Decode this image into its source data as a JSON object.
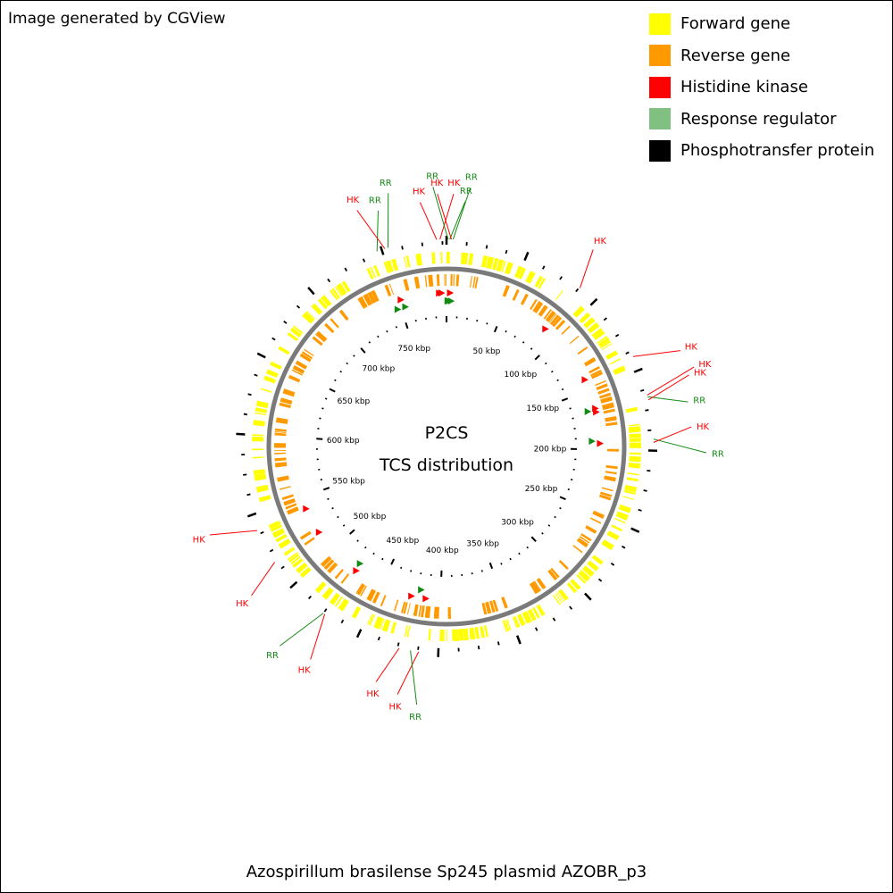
{
  "credit": "Image generated by CGView",
  "title": "Azospirillum brasilense Sp245 plasmid AZOBR_p3",
  "center_text": {
    "line1": "P2CS",
    "line2": "TCS distribution"
  },
  "legend": [
    {
      "label": "Forward gene",
      "color": "#ffff00"
    },
    {
      "label": "Reverse gene",
      "color": "#ff9900"
    },
    {
      "label": "Histidine kinase",
      "color": "#ff0000"
    },
    {
      "label": "Response regulator",
      "color": "#80c080"
    },
    {
      "label": "Phosphotransfer protein",
      "color": "#000000"
    }
  ],
  "colors": {
    "forward": "#ffff00",
    "reverse": "#ff9900",
    "hk": "#ff0000",
    "rr_marker": "#138a13",
    "backbone": "#7a7a7a",
    "ticks": "#000000"
  },
  "genome": {
    "length_kbp": 790,
    "tick_labels": [
      "50 kbp",
      "100 kbp",
      "150 kbp",
      "200 kbp",
      "250 kbp",
      "300 kbp",
      "350 kbp",
      "400 kbp",
      "450 kbp",
      "500 kbp",
      "550 kbp",
      "600 kbp",
      "650 kbp",
      "700 kbp",
      "750 kbp"
    ]
  },
  "features": [
    {
      "label": "RR",
      "type": "RR",
      "kbp": 747
    },
    {
      "label": "HK",
      "type": "HK",
      "kbp": 752
    },
    {
      "label": "RR",
      "type": "RR",
      "kbp": 754
    },
    {
      "label": "HK",
      "type": "HK",
      "kbp": 784
    },
    {
      "label": "HK",
      "type": "HK",
      "kbp": 786
    },
    {
      "label": "RR",
      "type": "RR",
      "kbp": 1
    },
    {
      "label": "RR",
      "type": "RR",
      "kbp": 2
    },
    {
      "label": "HK",
      "type": "HK",
      "kbp": 3
    },
    {
      "label": "RR",
      "type": "RR",
      "kbp": 4
    },
    {
      "label": "HK",
      "type": "HK",
      "kbp": 88
    },
    {
      "label": "HK",
      "type": "HK",
      "kbp": 141
    },
    {
      "label": "HK",
      "type": "HK",
      "kbp": 166
    },
    {
      "label": "RR",
      "type": "RR",
      "kbp": 167
    },
    {
      "label": "HK",
      "type": "HK",
      "kbp": 169
    },
    {
      "label": "RR",
      "type": "RR",
      "kbp": 193
    },
    {
      "label": "HK",
      "type": "HK",
      "kbp": 195
    },
    {
      "label": "HK",
      "type": "HK",
      "kbp": 412
    },
    {
      "label": "RR",
      "type": "RR",
      "kbp": 417
    },
    {
      "label": "HK",
      "type": "HK",
      "kbp": 424
    },
    {
      "label": "HK",
      "type": "HK",
      "kbp": 474
    },
    {
      "label": "RR",
      "type": "RR",
      "kbp": 475
    },
    {
      "label": "HK",
      "type": "HK",
      "kbp": 518
    },
    {
      "label": "HK",
      "type": "HK",
      "kbp": 540
    }
  ]
}
